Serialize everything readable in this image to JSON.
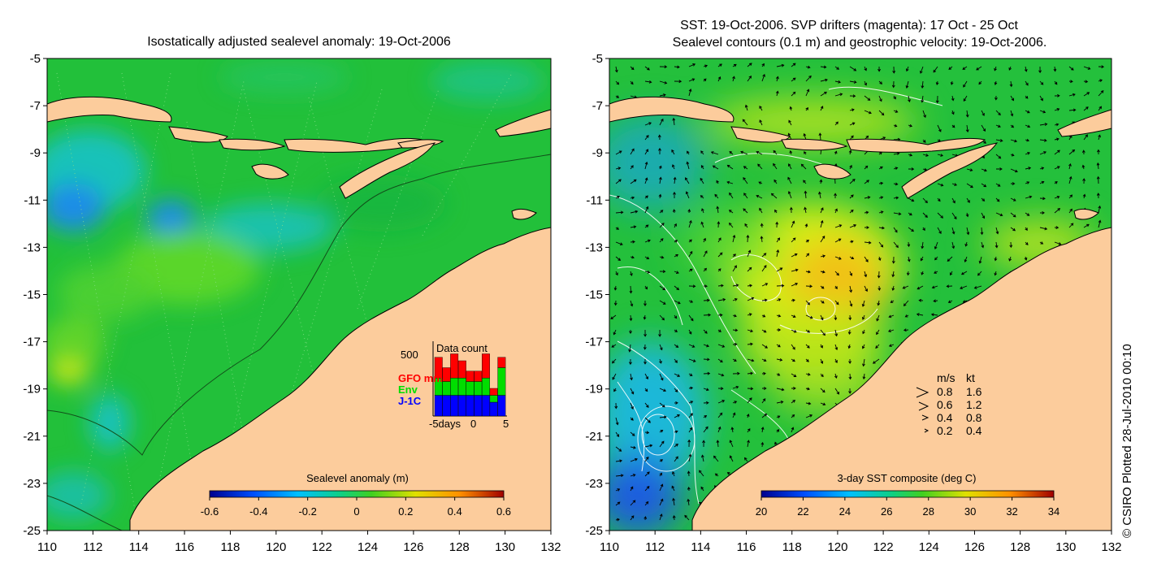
{
  "left_map": {
    "title": "Isostatically adjusted sealevel anomaly: 19-Oct-2006",
    "y_ticks": [
      "-5",
      "-7",
      "-9",
      "-11",
      "-13",
      "-15",
      "-17",
      "-19",
      "-21",
      "-23",
      "-25"
    ],
    "x_ticks": [
      "110",
      "112",
      "114",
      "116",
      "118",
      "120",
      "122",
      "124",
      "126",
      "128",
      "130",
      "132"
    ],
    "colorbar": {
      "label": "Sealevel anomaly (m)",
      "ticks": [
        "-0.6",
        "-0.4",
        "-0.2",
        "0",
        "0.2",
        "0.4",
        "0.6"
      ]
    },
    "inset": {
      "title": "Data count",
      "ymax": "500",
      "legend": [
        {
          "label": "GFO mm",
          "color": "#ff0000"
        },
        {
          "label": "Env",
          "color": "#00dd00"
        },
        {
          "label": "J-1C",
          "color": "#0000ff"
        }
      ],
      "x_labels": [
        "-5days",
        "0",
        "5"
      ],
      "bars": [
        {
          "day": -5,
          "blue": 0.3,
          "green": 0.25,
          "red": 0.3
        },
        {
          "day": -4,
          "blue": 0.3,
          "green": 0.2,
          "red": 0.2
        },
        {
          "day": -3,
          "blue": 0.3,
          "green": 0.25,
          "red": 0.35
        },
        {
          "day": -2,
          "blue": 0.3,
          "green": 0.25,
          "red": 0.25
        },
        {
          "day": -1,
          "blue": 0.3,
          "green": 0.2,
          "red": 0.15
        },
        {
          "day": 0,
          "blue": 0.3,
          "green": 0.2,
          "red": 0.15
        },
        {
          "day": 1,
          "blue": 0.3,
          "green": 0.25,
          "red": 0.35
        },
        {
          "day": 2,
          "blue": 0.2,
          "green": 0.1,
          "red": 0.1
        },
        {
          "day": 3,
          "blue": 0.3,
          "green": 0.4,
          "red": 0.15
        }
      ]
    }
  },
  "right_map": {
    "title_line1": "SST: 19-Oct-2006. SVP drifters (magenta): 17 Oct - 25 Oct",
    "title_line2": "Sealevel contours (0.1 m) and geostrophic velocity: 19-Oct-2006.",
    "y_ticks": [
      "-5",
      "-7",
      "-9",
      "-11",
      "-13",
      "-15",
      "-17",
      "-19",
      "-21",
      "-23",
      "-25"
    ],
    "x_ticks": [
      "110",
      "112",
      "114",
      "116",
      "118",
      "120",
      "122",
      "124",
      "126",
      "128",
      "130",
      "132"
    ],
    "colorbar": {
      "label": "3-day SST composite (deg C)",
      "ticks": [
        "20",
        "22",
        "24",
        "26",
        "28",
        "30",
        "32",
        "34"
      ]
    },
    "speed_legend": {
      "header_ms": "m/s",
      "header_kt": "kt",
      "rows": [
        {
          "ms": "0.8",
          "kt": "1.6"
        },
        {
          "ms": "0.6",
          "kt": "1.2"
        },
        {
          "ms": "0.4",
          "kt": "0.8"
        },
        {
          "ms": "0.2",
          "kt": "0.4"
        }
      ]
    }
  },
  "credit": "© CSIRO Plotted 28-Jul-2010 00:10",
  "colors": {
    "land": "#fccc9c",
    "ocean_green": "#22c03a",
    "ocean_light_green": "#4fd22a",
    "ocean_cyan": "#15b9d6",
    "ocean_blue": "#1f7be0",
    "sst_yellow": "#d5ee11",
    "sst_orange": "#f0c010"
  }
}
